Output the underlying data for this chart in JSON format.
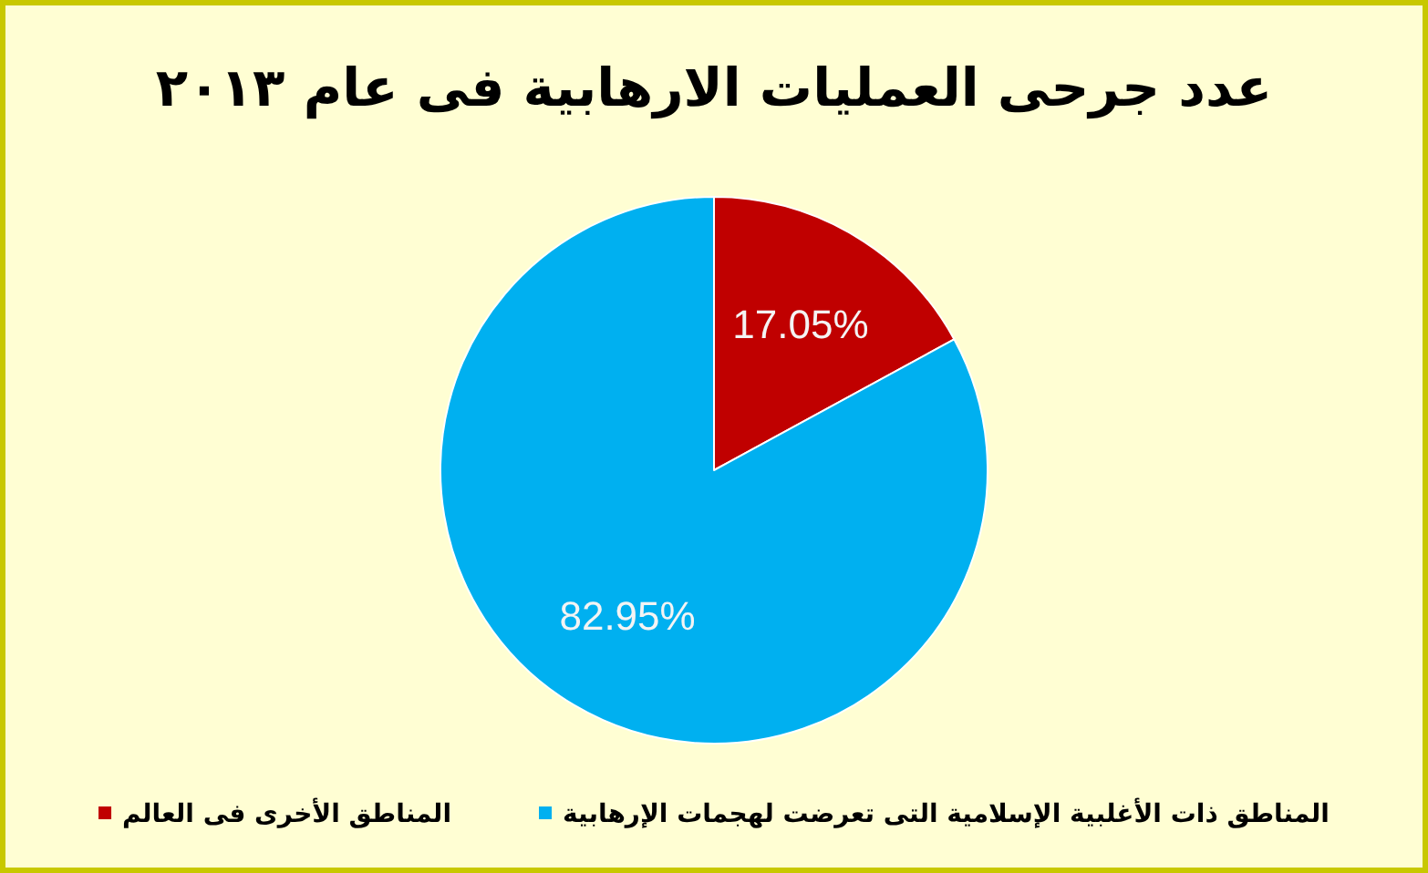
{
  "chart_data": {
    "type": "pie",
    "title": "عدد جرحى العمليات الارهابية فى عام ٢٠١٣",
    "categories": [
      "المناطق الأخرى فى العالم",
      "المناطق ذات الأغلبية الإسلامية التى تعرضت لهجمات الإرهابية"
    ],
    "values": [
      17.05,
      82.95
    ],
    "colors": [
      "#c00000",
      "#00b0f0"
    ],
    "value_labels": [
      "17.05%",
      "82.95%"
    ],
    "legend": "bottom"
  }
}
